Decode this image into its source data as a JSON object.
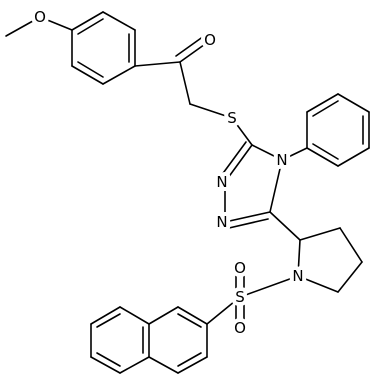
{
  "atoms": [
    "O",
    "O",
    "S",
    "N",
    "N",
    "N",
    "N",
    "S",
    "O",
    "O"
  ]
}
